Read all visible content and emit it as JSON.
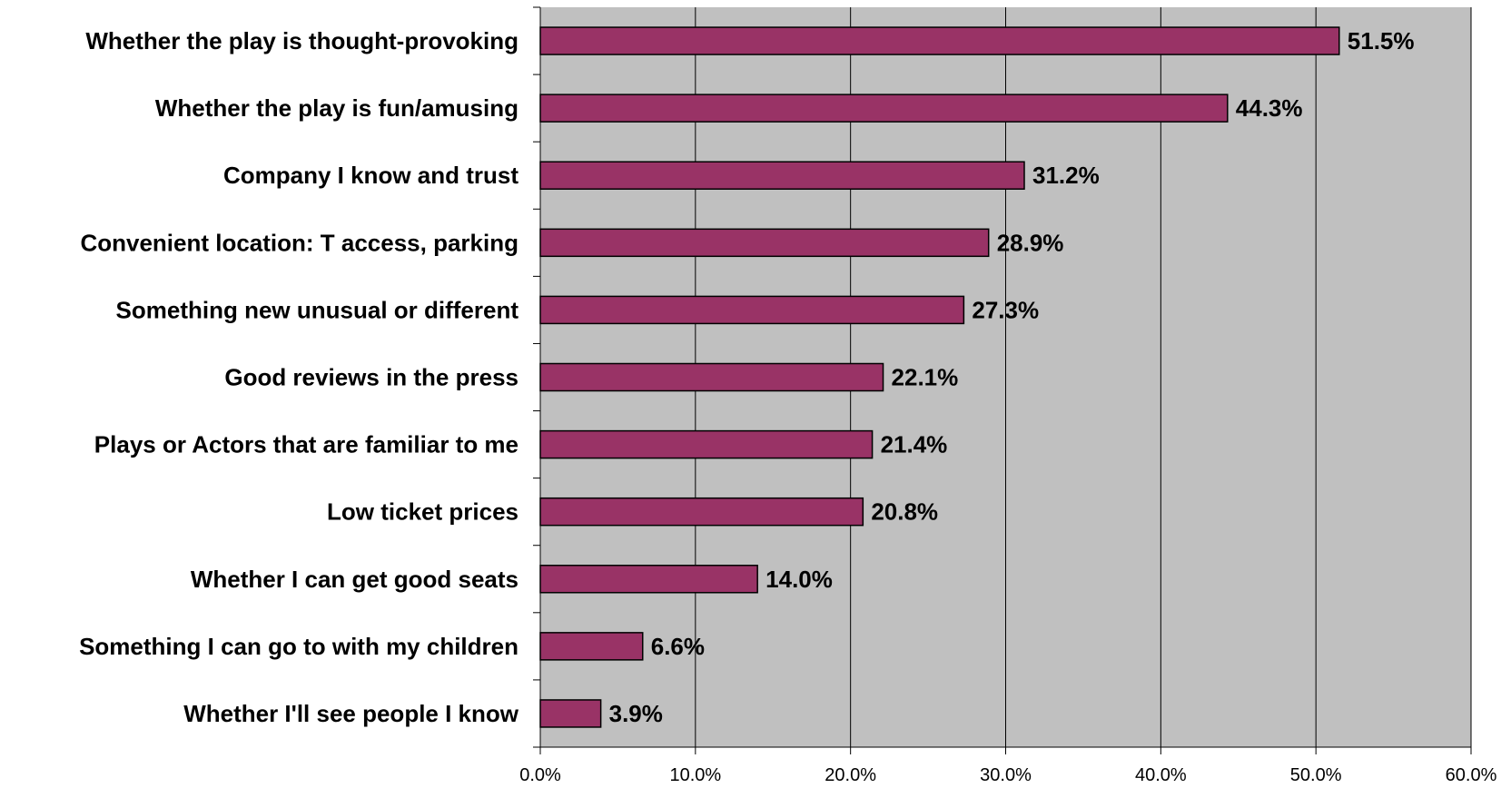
{
  "chart_data": {
    "type": "bar",
    "orientation": "horizontal",
    "categories": [
      "Whether the play is thought-provoking",
      "Whether the play is fun/amusing",
      "Company I know and trust",
      "Convenient location: T access, parking",
      "Something new unusual or different",
      "Good reviews in the press",
      "Plays or Actors that are familiar to me",
      "Low ticket prices",
      "Whether I can get good seats",
      "Something I can go to with my children",
      "Whether I'll see people I know"
    ],
    "values": [
      51.5,
      44.3,
      31.2,
      28.9,
      27.3,
      22.1,
      21.4,
      20.8,
      14.0,
      6.6,
      3.9
    ],
    "value_labels": [
      "51.5%",
      "44.3%",
      "31.2%",
      "28.9%",
      "27.3%",
      "22.1%",
      "21.4%",
      "20.8%",
      "14.0%",
      "6.6%",
      "3.9%"
    ],
    "xlim": [
      0,
      60
    ],
    "xticks": [
      0,
      10,
      20,
      30,
      40,
      50,
      60
    ],
    "xtick_labels": [
      "0.0%",
      "10.0%",
      "20.0%",
      "30.0%",
      "40.0%",
      "50.0%",
      "60.0%"
    ],
    "title": "",
    "xlabel": "",
    "ylabel": "",
    "grid": "vertical",
    "legend": "none",
    "colors": {
      "bar": "#993366",
      "bar_edge": "#000000",
      "plot_background": "#c0c0c0",
      "gridline": "#000000"
    }
  }
}
